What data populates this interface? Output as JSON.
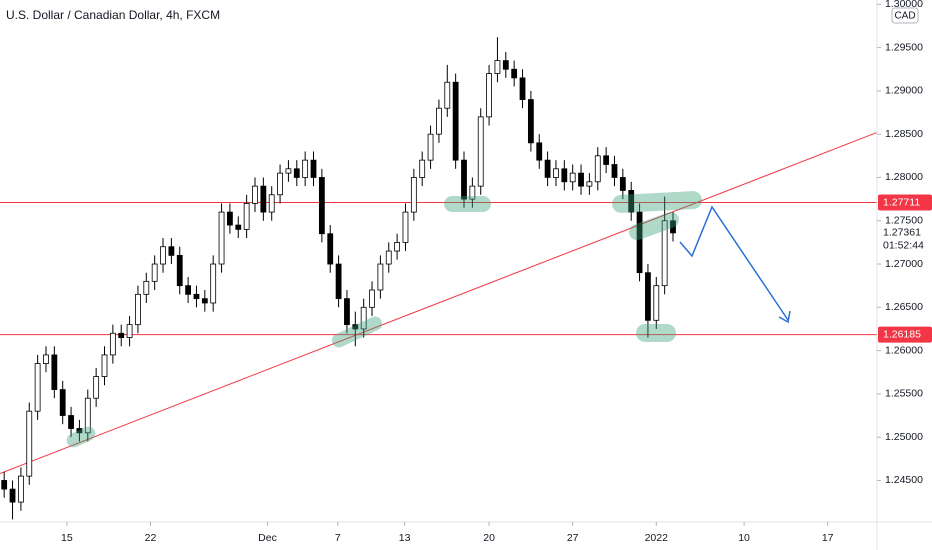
{
  "chart_data": {
    "type": "candlestick",
    "title": "U.S. Dollar / Canadian Dollar, 4h, FXCM",
    "currency": "CAD",
    "up_color": "#ffffff",
    "down_color": "#000000",
    "border_color": "#000000",
    "x": [
      0,
      1,
      2,
      3,
      4,
      5,
      6,
      7,
      8,
      9,
      10,
      11,
      12,
      13,
      14,
      15,
      16,
      17,
      18,
      19,
      20,
      21,
      22,
      23,
      24,
      25,
      26,
      27,
      28,
      29,
      30,
      31,
      32,
      33,
      34,
      35,
      36,
      37,
      38,
      39,
      40,
      41,
      42,
      43,
      44,
      45,
      46,
      47,
      48,
      49,
      50,
      51,
      52,
      53,
      54,
      55,
      56,
      57,
      58,
      59,
      60,
      61,
      62,
      63,
      64,
      65,
      66,
      67,
      68,
      69,
      70,
      71,
      72,
      73,
      74,
      75,
      76,
      77,
      78,
      79,
      80
    ],
    "ohlc": [
      [
        1.245,
        1.246,
        1.243,
        1.244
      ],
      [
        1.244,
        1.245,
        1.2405,
        1.2425
      ],
      [
        1.2425,
        1.2465,
        1.2415,
        1.2455
      ],
      [
        1.2455,
        1.254,
        1.2445,
        1.253
      ],
      [
        1.253,
        1.2595,
        1.252,
        1.2585
      ],
      [
        1.2585,
        1.2605,
        1.2575,
        1.2595
      ],
      [
        1.2595,
        1.2605,
        1.2545,
        1.2555
      ],
      [
        1.2555,
        1.2565,
        1.2515,
        1.2525
      ],
      [
        1.2525,
        1.2535,
        1.25,
        1.251
      ],
      [
        1.251,
        1.252,
        1.2495,
        1.2505
      ],
      [
        1.2505,
        1.2555,
        1.2495,
        1.2545
      ],
      [
        1.2545,
        1.258,
        1.2535,
        1.257
      ],
      [
        1.257,
        1.2605,
        1.256,
        1.2595
      ],
      [
        1.2595,
        1.263,
        1.2585,
        1.262
      ],
      [
        1.262,
        1.263,
        1.2605,
        1.2615
      ],
      [
        1.2615,
        1.264,
        1.2605,
        1.263
      ],
      [
        1.263,
        1.2675,
        1.262,
        1.2665
      ],
      [
        1.2665,
        1.269,
        1.2655,
        1.268
      ],
      [
        1.268,
        1.271,
        1.267,
        1.27
      ],
      [
        1.27,
        1.273,
        1.269,
        1.272
      ],
      [
        1.272,
        1.273,
        1.27,
        1.271
      ],
      [
        1.271,
        1.272,
        1.2665,
        1.2675
      ],
      [
        1.2675,
        1.2685,
        1.2655,
        1.2665
      ],
      [
        1.2665,
        1.2675,
        1.265,
        1.266
      ],
      [
        1.266,
        1.267,
        1.2645,
        1.2655
      ],
      [
        1.2655,
        1.271,
        1.2645,
        1.27
      ],
      [
        1.27,
        1.277,
        1.269,
        1.276
      ],
      [
        1.276,
        1.277,
        1.2735,
        1.2745
      ],
      [
        1.2745,
        1.2755,
        1.273,
        1.274
      ],
      [
        1.274,
        1.278,
        1.273,
        1.277
      ],
      [
        1.277,
        1.28,
        1.276,
        1.279
      ],
      [
        1.279,
        1.28,
        1.275,
        1.276
      ],
      [
        1.276,
        1.279,
        1.275,
        1.278
      ],
      [
        1.278,
        1.2815,
        1.277,
        1.2805
      ],
      [
        1.2805,
        1.282,
        1.2795,
        1.281
      ],
      [
        1.281,
        1.282,
        1.279,
        1.28
      ],
      [
        1.28,
        1.283,
        1.279,
        1.282
      ],
      [
        1.282,
        1.283,
        1.279,
        1.28
      ],
      [
        1.28,
        1.281,
        1.2725,
        1.2735
      ],
      [
        1.2735,
        1.2745,
        1.269,
        1.27
      ],
      [
        1.27,
        1.271,
        1.265,
        1.266
      ],
      [
        1.266,
        1.267,
        1.262,
        1.263
      ],
      [
        1.263,
        1.2645,
        1.2605,
        1.2625
      ],
      [
        1.2625,
        1.266,
        1.2615,
        1.265
      ],
      [
        1.265,
        1.268,
        1.264,
        1.267
      ],
      [
        1.267,
        1.271,
        1.266,
        1.27
      ],
      [
        1.27,
        1.2725,
        1.269,
        1.2715
      ],
      [
        1.2715,
        1.2735,
        1.2705,
        1.2725
      ],
      [
        1.2725,
        1.277,
        1.2715,
        1.276
      ],
      [
        1.276,
        1.281,
        1.275,
        1.28
      ],
      [
        1.28,
        1.283,
        1.279,
        1.282
      ],
      [
        1.282,
        1.286,
        1.281,
        1.285
      ],
      [
        1.285,
        1.289,
        1.284,
        1.288
      ],
      [
        1.288,
        1.293,
        1.287,
        1.291
      ],
      [
        1.291,
        1.292,
        1.281,
        1.282
      ],
      [
        1.282,
        1.283,
        1.2765,
        1.2775
      ],
      [
        1.2775,
        1.28,
        1.2765,
        1.279
      ],
      [
        1.279,
        1.288,
        1.278,
        1.287
      ],
      [
        1.287,
        1.293,
        1.286,
        1.292
      ],
      [
        1.292,
        1.2962,
        1.291,
        1.2935
      ],
      [
        1.2935,
        1.2945,
        1.2915,
        1.2925
      ],
      [
        1.2925,
        1.2935,
        1.2905,
        1.2915
      ],
      [
        1.2915,
        1.2925,
        1.288,
        1.289
      ],
      [
        1.289,
        1.29,
        1.283,
        1.284
      ],
      [
        1.284,
        1.285,
        1.281,
        1.282
      ],
      [
        1.282,
        1.283,
        1.279,
        1.28
      ],
      [
        1.28,
        1.282,
        1.279,
        1.281
      ],
      [
        1.281,
        1.282,
        1.2785,
        1.2795
      ],
      [
        1.2795,
        1.2815,
        1.2785,
        1.2805
      ],
      [
        1.2805,
        1.2815,
        1.278,
        1.279
      ],
      [
        1.279,
        1.2805,
        1.278,
        1.2795
      ],
      [
        1.2795,
        1.2835,
        1.2785,
        1.2825
      ],
      [
        1.2825,
        1.2835,
        1.2805,
        1.2815
      ],
      [
        1.2815,
        1.2825,
        1.279,
        1.28
      ],
      [
        1.28,
        1.281,
        1.2775,
        1.2785
      ],
      [
        1.2785,
        1.2795,
        1.275,
        1.276
      ],
      [
        1.276,
        1.277,
        1.268,
        1.269
      ],
      [
        1.269,
        1.27,
        1.2615,
        1.2635
      ],
      [
        1.2635,
        1.2685,
        1.2625,
        1.2675
      ],
      [
        1.2675,
        1.2778,
        1.2665,
        1.275
      ],
      [
        1.275,
        1.276,
        1.2726,
        1.2736
      ]
    ],
    "xlim": [
      -0.5,
      104.4
    ],
    "ylim": [
      1.2402,
      1.3005
    ],
    "xticks": [
      {
        "value": 7.5,
        "label": "15"
      },
      {
        "value": 17.5,
        "label": "22"
      },
      {
        "value": 31.5,
        "label": "Dec"
      },
      {
        "value": 39.9,
        "label": "7"
      },
      {
        "value": 47.9,
        "label": "13"
      },
      {
        "value": 58,
        "label": "20"
      },
      {
        "value": 68,
        "label": "27"
      },
      {
        "value": 78,
        "label": "2022"
      },
      {
        "value": 88.5,
        "label": "10"
      },
      {
        "value": 98.5,
        "label": "17"
      }
    ],
    "yticks": [
      {
        "value": 1.245,
        "label": "1.24500"
      },
      {
        "value": 1.25,
        "label": "1.25000"
      },
      {
        "value": 1.255,
        "label": "1.25500"
      },
      {
        "value": 1.26,
        "label": "1.26000"
      },
      {
        "value": 1.265,
        "label": "1.26500"
      },
      {
        "value": 1.27,
        "label": "1.27000"
      },
      {
        "value": 1.275,
        "label": "1.27500"
      },
      {
        "value": 1.28,
        "label": "1.28000"
      },
      {
        "value": 1.285,
        "label": "1.28500"
      },
      {
        "value": 1.29,
        "label": "1.29000"
      },
      {
        "value": 1.295,
        "label": "1.29500"
      },
      {
        "value": 1.3,
        "label": "1.30000"
      }
    ],
    "hlines": [
      {
        "value": 1.27711,
        "color": "#f23645"
      },
      {
        "value": 1.26185,
        "color": "#f23645"
      }
    ],
    "trendline": {
      "x": [
        -0.5,
        104.4
      ],
      "y": [
        1.2458,
        1.2852
      ],
      "color": "#f23645"
    },
    "last_price": 1.27361,
    "countdown": "01:52:44"
  }
}
